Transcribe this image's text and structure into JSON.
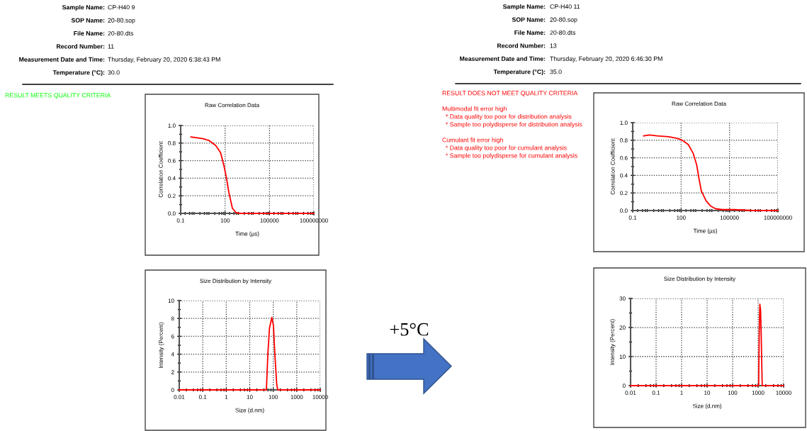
{
  "chart_data": [
    {
      "type": "other",
      "annotations": [
        "Sample Name:",
        "CP-H40 9",
        "SOP Name:",
        "20-80.sop",
        "File Name:",
        "20-80.dts",
        "Record Number:",
        "11",
        "Measurement Date and Time:",
        "Thursday, February 20, 2020 6:38:43 PM",
        "Temperature (°C):",
        "30.0"
      ],
      "subtitle": "RESULT MEETS QUALITY CRITERIA",
      "color": "#00ff00"
    },
    {
      "type": "other",
      "annotations": [
        "Sample Name:",
        "CP-H40 11",
        "SOP Name:",
        "20-80.sop",
        "File Name:",
        "20-80.dts",
        "Record Number:",
        "13",
        "Measurement Date and Time:",
        "Thursday, February 20, 2020 6:46:30 PM",
        "Temperature (°C):",
        "35.0"
      ],
      "subtitle": "RESULT DOES NOT MEET QUALITY CRITERIA\n\nMultimodal fit error high\n  * Data quality too poor for distribution analysis\n  * Sample too polydisperse for distribution analysis\n\nCumulant fit error high\n  * Data quality too poor for cumulant analysis\n  * Sample too polydisperse for cumulant analysis",
      "color": "#ff0000"
    },
    {
      "type": "line",
      "title": "Raw Correlation Data",
      "xlabel": "Time (µs)",
      "ylabel": "Correlation Coefficient",
      "log": "x",
      "grid": true,
      "xlim": [
        0.1,
        100000000
      ],
      "xticks": [
        0.1,
        100,
        100000,
        100000000
      ],
      "ylim": [
        0,
        1
      ],
      "yticks": [
        {
          "value": 0,
          "label": "0.0"
        },
        {
          "value": 0.2,
          "label": "0.2"
        },
        {
          "value": 0.4,
          "label": "0.4"
        },
        {
          "value": 0.6,
          "label": "0.6"
        },
        {
          "value": 0.8,
          "label": "0.8"
        },
        {
          "value": 1,
          "label": "1.0"
        }
      ],
      "series": [
        {
          "color": "#ff0000",
          "x": [
            0.5,
            3.2,
            8,
            24,
            50,
            87,
            125,
            180,
            310,
            540,
            930,
            10000,
            1000000,
            100000000
          ],
          "values": [
            0.87,
            0.85,
            0.83,
            0.77,
            0.69,
            0.53,
            0.4,
            0.24,
            0.06,
            0.01,
            0,
            0,
            0,
            0
          ]
        }
      ]
    },
    {
      "type": "line",
      "title": "Raw Correlation Data",
      "xlabel": "Time (µs)",
      "ylabel": "Correlation Coefficient",
      "log": "x",
      "grid": true,
      "xlim": [
        0.1,
        100000000
      ],
      "xticks": [
        0.1,
        100,
        100000,
        100000000
      ],
      "ylim": [
        0,
        1
      ],
      "yticks": [
        {
          "value": 0,
          "label": "0.0"
        },
        {
          "value": 0.2,
          "label": "0.2"
        },
        {
          "value": 0.4,
          "label": "0.4"
        },
        {
          "value": 0.6,
          "label": "0.6"
        },
        {
          "value": 0.8,
          "label": "0.8"
        },
        {
          "value": 1,
          "label": "1.0"
        }
      ],
      "series": [
        {
          "color": "#ff0000",
          "x": [
            0.48,
            1.1,
            3.1,
            17,
            63,
            117,
            280,
            560,
            920,
            1290,
            1800,
            3550,
            6900,
            13500,
            37000,
            200000,
            3000000,
            100000000
          ],
          "values": [
            0.85,
            0.86,
            0.85,
            0.84,
            0.82,
            0.8,
            0.75,
            0.65,
            0.52,
            0.36,
            0.22,
            0.11,
            0.05,
            0.02,
            0.01,
            0.01,
            0,
            0
          ]
        }
      ]
    },
    {
      "type": "line",
      "title": "Size Distribution by Intensity",
      "xlabel": "Size (d.nm)",
      "ylabel": "Intensity (Percent)",
      "log": "x",
      "grid": true,
      "xlim": [
        0.01,
        10000
      ],
      "xticks": [
        0.01,
        0.1,
        1,
        10,
        100,
        1000,
        10000
      ],
      "ylim": [
        0,
        10
      ],
      "yticks": [
        0,
        2,
        4,
        6,
        8,
        10
      ],
      "series": [
        {
          "color": "#ff0000",
          "x": [
            0.01,
            51,
            59,
            69,
            87,
            102,
            117,
            141,
            155,
            10000
          ],
          "values": [
            0,
            0,
            4,
            6.9,
            8.1,
            7.2,
            4,
            0.6,
            0,
            0
          ]
        }
      ]
    },
    {
      "type": "other",
      "title": "+5°C",
      "color": "#4472c4"
    },
    {
      "type": "line",
      "title": "Size Distribution by Intensity",
      "xlabel": "Size (d.nm)",
      "ylabel": "Intensity (Percent)",
      "log": "x",
      "grid": true,
      "xlim": [
        0.01,
        10000
      ],
      "xticks": [
        0.01,
        0.1,
        1,
        10,
        100,
        1000,
        10000
      ],
      "ylim": [
        0,
        30
      ],
      "yticks": [
        0,
        10,
        20,
        30
      ],
      "series": [
        {
          "color": "#ff0000",
          "x": [
            0.01,
            1050,
            1100,
            1170,
            1250,
            1320,
            1400,
            1450,
            10000
          ],
          "values": [
            0,
            0,
            17,
            28,
            26,
            18,
            6,
            0,
            0
          ]
        }
      ]
    }
  ]
}
